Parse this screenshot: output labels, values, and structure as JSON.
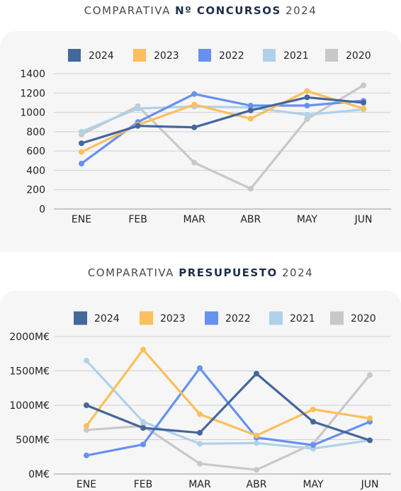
{
  "chart_data": [
    {
      "type": "line",
      "title_prefix": "COMPARATIVA",
      "title_strong": "Nº CONCURSOS",
      "title_suffix": "2024",
      "categories": [
        "ENE",
        "FEB",
        "MAR",
        "ABR",
        "MAY",
        "JUN"
      ],
      "ylim": [
        0,
        1400
      ],
      "yticks": [
        0,
        200,
        400,
        600,
        800,
        1000,
        1200,
        1400
      ],
      "ytick_labels": [
        "0",
        "200",
        "400",
        "600",
        "800",
        "1000",
        "1200",
        "1400"
      ],
      "grid": true,
      "legend_position": "top",
      "series": [
        {
          "name": "2024",
          "color": "#44679c",
          "values": [
            680,
            860,
            845,
            1020,
            1155,
            1100
          ]
        },
        {
          "name": "2023",
          "color": "#fbbf5c",
          "values": [
            590,
            870,
            1080,
            935,
            1220,
            1040
          ]
        },
        {
          "name": "2022",
          "color": "#6791f0",
          "values": [
            470,
            900,
            1190,
            1070,
            1070,
            1120
          ]
        },
        {
          "name": "2021",
          "color": "#b0d1ea",
          "values": [
            800,
            1040,
            1060,
            1050,
            975,
            1030
          ]
        },
        {
          "name": "2020",
          "color": "#c8c8c8",
          "values": [
            770,
            1065,
            480,
            210,
            930,
            1280
          ]
        }
      ]
    },
    {
      "type": "line",
      "title_prefix": "COMPARATIVA",
      "title_strong": "PRESUPUESTO",
      "title_suffix": "2024",
      "categories": [
        "ENE",
        "FEB",
        "MAR",
        "ABR",
        "MAY",
        "JUN"
      ],
      "ylim": [
        0,
        2000
      ],
      "yticks": [
        0,
        500,
        1000,
        1500,
        2000
      ],
      "ytick_labels": [
        "0M€",
        "500M€",
        "1000M€",
        "1500M€",
        "2000M€"
      ],
      "grid": true,
      "legend_position": "top",
      "series": [
        {
          "name": "2024",
          "color": "#44679c",
          "values": [
            1000,
            670,
            600,
            1460,
            760,
            490
          ]
        },
        {
          "name": "2023",
          "color": "#fbbf5c",
          "values": [
            700,
            1810,
            870,
            560,
            940,
            810
          ]
        },
        {
          "name": "2022",
          "color": "#6791f0",
          "values": [
            270,
            430,
            1540,
            530,
            420,
            760
          ]
        },
        {
          "name": "2021",
          "color": "#b0d1ea",
          "values": [
            1650,
            760,
            440,
            450,
            370,
            490
          ]
        },
        {
          "name": "2020",
          "color": "#c8c8c8",
          "values": [
            640,
            700,
            150,
            60,
            440,
            1440
          ]
        }
      ]
    }
  ]
}
